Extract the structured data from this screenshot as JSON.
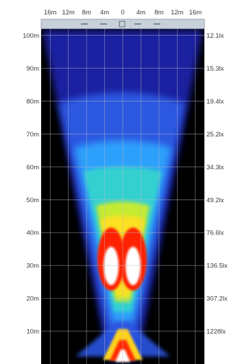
{
  "chart_data": {
    "type": "heatmap",
    "x_ticks": [
      "16m",
      "12m",
      "8m",
      "4m",
      "0",
      "4m",
      "8m",
      "12m",
      "16m"
    ],
    "x_values_m": [
      -16,
      -12,
      -8,
      -4,
      0,
      4,
      8,
      12,
      16
    ],
    "y_ticks": [
      "100m",
      "90m",
      "80m",
      "70m",
      "60m",
      "50m",
      "40m",
      "30m",
      "20m",
      "10m"
    ],
    "y_values_m": [
      100,
      90,
      80,
      70,
      60,
      50,
      40,
      30,
      20,
      10
    ],
    "xlim": [
      -18,
      18
    ],
    "ylim": [
      0,
      102
    ],
    "illuminance_labels": [
      {
        "distance_m": 100,
        "label": "12.1lx"
      },
      {
        "distance_m": 90,
        "label": "15.3lx"
      },
      {
        "distance_m": 80,
        "label": "19.4lx"
      },
      {
        "distance_m": 70,
        "label": "25.2lx"
      },
      {
        "distance_m": 60,
        "label": "34.3lx"
      },
      {
        "distance_m": 50,
        "label": "49.2lx"
      },
      {
        "distance_m": 40,
        "label": "76.6lx"
      },
      {
        "distance_m": 30,
        "label": "136.5lx"
      },
      {
        "distance_m": 20,
        "label": "307.2lx"
      },
      {
        "distance_m": 10,
        "label": "1228lx"
      }
    ],
    "grid": true,
    "colors": {
      "background": "#000000",
      "low": "#1a22b0",
      "mid_low": "#2f8bff",
      "mid": "#2fd9c8",
      "mid_high": "#c8f020",
      "high": "#ff1a00",
      "peak": "#ffffff"
    }
  }
}
